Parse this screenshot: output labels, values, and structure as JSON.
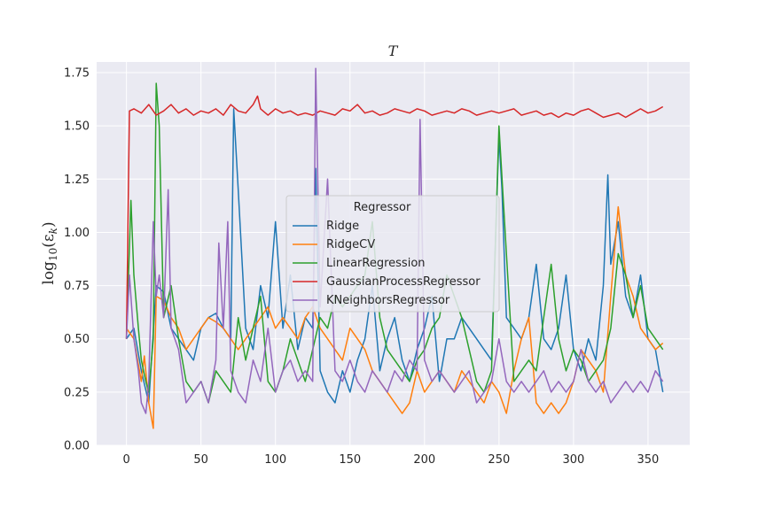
{
  "chart_data": {
    "type": "line",
    "title": "T",
    "ylabel": "log10(ε_k)",
    "xlabel": "",
    "xlim": [
      -20,
      378
    ],
    "ylim": [
      0.0,
      1.8
    ],
    "xticks": [
      0,
      50,
      100,
      150,
      200,
      250,
      300,
      350
    ],
    "yticks": [
      "0.00",
      "0.25",
      "0.50",
      "0.75",
      "1.00",
      "1.25",
      "1.50",
      "1.75"
    ],
    "grid": true,
    "legend": {
      "title": "Regressor",
      "placement": "center"
    },
    "series": [
      {
        "name": "Ridge",
        "color": "#1f77b4",
        "x": [
          0,
          5,
          10,
          15,
          20,
          25,
          30,
          35,
          40,
          45,
          50,
          55,
          60,
          65,
          70,
          72,
          75,
          80,
          85,
          90,
          95,
          100,
          105,
          110,
          115,
          120,
          125,
          127,
          130,
          135,
          140,
          145,
          150,
          155,
          160,
          165,
          170,
          175,
          180,
          185,
          190,
          195,
          200,
          205,
          210,
          215,
          220,
          225,
          230,
          235,
          240,
          245,
          250,
          252,
          255,
          260,
          265,
          270,
          275,
          280,
          285,
          290,
          295,
          300,
          305,
          310,
          315,
          320,
          323,
          325,
          330,
          335,
          340,
          345,
          350,
          355,
          360
        ],
        "y": [
          0.5,
          0.55,
          0.35,
          0.2,
          0.75,
          0.72,
          0.55,
          0.5,
          0.45,
          0.4,
          0.55,
          0.6,
          0.62,
          0.55,
          0.5,
          1.58,
          1.2,
          0.55,
          0.45,
          0.75,
          0.6,
          1.05,
          0.55,
          0.8,
          0.45,
          0.6,
          0.55,
          1.3,
          0.35,
          0.25,
          0.2,
          0.35,
          0.25,
          0.4,
          0.5,
          0.75,
          0.35,
          0.5,
          0.6,
          0.4,
          0.3,
          0.45,
          0.55,
          0.7,
          0.3,
          0.5,
          0.5,
          0.6,
          0.55,
          0.5,
          0.45,
          0.4,
          1.45,
          1.2,
          0.6,
          0.55,
          0.5,
          0.6,
          0.85,
          0.5,
          0.45,
          0.55,
          0.8,
          0.45,
          0.35,
          0.5,
          0.4,
          0.75,
          1.27,
          0.85,
          1.05,
          0.7,
          0.6,
          0.8,
          0.5,
          0.45,
          0.25
        ]
      },
      {
        "name": "RidgeCV",
        "color": "#ff7f0e",
        "x": [
          0,
          5,
          10,
          12,
          15,
          18,
          20,
          25,
          30,
          35,
          40,
          45,
          50,
          55,
          60,
          65,
          70,
          75,
          80,
          85,
          90,
          95,
          100,
          105,
          110,
          115,
          120,
          125,
          130,
          135,
          140,
          145,
          150,
          155,
          160,
          165,
          170,
          175,
          180,
          185,
          190,
          195,
          200,
          205,
          210,
          215,
          220,
          225,
          230,
          235,
          240,
          245,
          250,
          255,
          260,
          265,
          270,
          275,
          280,
          285,
          290,
          295,
          300,
          305,
          310,
          315,
          320,
          325,
          330,
          335,
          340,
          345,
          350,
          355,
          360
        ],
        "y": [
          0.55,
          0.5,
          0.3,
          0.42,
          0.2,
          0.08,
          0.7,
          0.68,
          0.6,
          0.55,
          0.45,
          0.5,
          0.55,
          0.6,
          0.58,
          0.55,
          0.5,
          0.45,
          0.5,
          0.55,
          0.6,
          0.65,
          0.55,
          0.6,
          0.55,
          0.5,
          0.6,
          0.65,
          0.55,
          0.5,
          0.45,
          0.4,
          0.55,
          0.5,
          0.45,
          0.35,
          0.3,
          0.25,
          0.2,
          0.15,
          0.2,
          0.35,
          0.25,
          0.3,
          0.35,
          0.3,
          0.25,
          0.35,
          0.3,
          0.25,
          0.2,
          0.3,
          0.25,
          0.15,
          0.35,
          0.5,
          0.6,
          0.2,
          0.15,
          0.2,
          0.15,
          0.2,
          0.3,
          0.45,
          0.4,
          0.35,
          0.25,
          0.7,
          1.12,
          0.8,
          0.7,
          0.55,
          0.5,
          0.45,
          0.48
        ]
      },
      {
        "name": "LinearRegression",
        "color": "#2ca02c",
        "x": [
          0,
          3,
          5,
          8,
          10,
          13,
          15,
          18,
          20,
          22,
          25,
          30,
          35,
          40,
          45,
          50,
          55,
          60,
          65,
          70,
          75,
          80,
          85,
          90,
          95,
          100,
          105,
          110,
          115,
          120,
          125,
          130,
          135,
          140,
          145,
          150,
          155,
          160,
          165,
          170,
          175,
          180,
          185,
          190,
          195,
          200,
          205,
          210,
          215,
          220,
          225,
          230,
          235,
          240,
          245,
          250,
          255,
          260,
          265,
          270,
          275,
          280,
          285,
          290,
          295,
          300,
          305,
          310,
          315,
          320,
          325,
          330,
          335,
          340,
          345,
          350,
          355,
          360
        ],
        "y": [
          0.5,
          1.15,
          0.8,
          0.55,
          0.4,
          0.3,
          0.25,
          0.5,
          1.7,
          1.5,
          0.6,
          0.75,
          0.5,
          0.3,
          0.25,
          0.3,
          0.2,
          0.35,
          0.3,
          0.25,
          0.6,
          0.4,
          0.55,
          0.7,
          0.3,
          0.25,
          0.35,
          0.5,
          0.4,
          0.3,
          0.45,
          0.6,
          0.55,
          0.7,
          0.65,
          0.7,
          0.75,
          0.8,
          1.05,
          0.6,
          0.45,
          0.4,
          0.35,
          0.3,
          0.4,
          0.45,
          0.55,
          0.6,
          0.8,
          0.7,
          0.6,
          0.45,
          0.3,
          0.25,
          0.35,
          1.5,
          0.9,
          0.3,
          0.35,
          0.4,
          0.35,
          0.6,
          0.85,
          0.5,
          0.35,
          0.45,
          0.4,
          0.3,
          0.35,
          0.4,
          0.55,
          0.9,
          0.8,
          0.6,
          0.75,
          0.55,
          0.5,
          0.45
        ]
      },
      {
        "name": "GaussianProcessRegressor",
        "color": "#d62728",
        "x": [
          0,
          2,
          5,
          10,
          15,
          20,
          25,
          30,
          35,
          40,
          45,
          50,
          55,
          60,
          65,
          70,
          75,
          80,
          85,
          88,
          90,
          95,
          100,
          105,
          110,
          115,
          120,
          125,
          130,
          135,
          140,
          145,
          150,
          155,
          160,
          165,
          170,
          175,
          180,
          185,
          190,
          195,
          200,
          205,
          210,
          215,
          220,
          225,
          230,
          235,
          240,
          245,
          250,
          255,
          260,
          265,
          270,
          275,
          280,
          285,
          290,
          295,
          300,
          305,
          310,
          315,
          320,
          325,
          330,
          335,
          340,
          345,
          350,
          355,
          360
        ],
        "y": [
          0.5,
          1.57,
          1.58,
          1.56,
          1.6,
          1.55,
          1.57,
          1.6,
          1.56,
          1.58,
          1.55,
          1.57,
          1.56,
          1.58,
          1.55,
          1.6,
          1.57,
          1.56,
          1.6,
          1.64,
          1.58,
          1.55,
          1.58,
          1.56,
          1.57,
          1.55,
          1.56,
          1.55,
          1.57,
          1.56,
          1.55,
          1.58,
          1.57,
          1.6,
          1.56,
          1.57,
          1.55,
          1.56,
          1.58,
          1.57,
          1.56,
          1.58,
          1.57,
          1.55,
          1.56,
          1.57,
          1.56,
          1.58,
          1.57,
          1.55,
          1.56,
          1.57,
          1.56,
          1.57,
          1.58,
          1.55,
          1.56,
          1.57,
          1.55,
          1.56,
          1.54,
          1.56,
          1.55,
          1.57,
          1.58,
          1.56,
          1.54,
          1.55,
          1.56,
          1.54,
          1.56,
          1.58,
          1.56,
          1.57,
          1.59
        ]
      },
      {
        "name": "KNeighborsRegressor",
        "color": "#9467bd",
        "x": [
          0,
          2,
          5,
          8,
          10,
          13,
          15,
          18,
          20,
          22,
          25,
          28,
          30,
          35,
          40,
          45,
          50,
          55,
          60,
          62,
          65,
          68,
          70,
          75,
          80,
          85,
          90,
          95,
          100,
          105,
          110,
          115,
          120,
          125,
          127,
          130,
          135,
          140,
          145,
          150,
          155,
          160,
          165,
          170,
          175,
          180,
          185,
          190,
          195,
          197,
          200,
          205,
          210,
          215,
          220,
          225,
          230,
          235,
          240,
          245,
          250,
          255,
          260,
          265,
          270,
          275,
          280,
          285,
          290,
          295,
          300,
          305,
          310,
          315,
          320,
          325,
          330,
          335,
          340,
          345,
          350,
          355,
          360
        ],
        "y": [
          0.5,
          0.8,
          0.5,
          0.35,
          0.2,
          0.15,
          0.3,
          1.05,
          0.7,
          0.8,
          0.6,
          1.2,
          0.55,
          0.45,
          0.2,
          0.25,
          0.3,
          0.2,
          0.4,
          0.95,
          0.55,
          1.05,
          0.35,
          0.25,
          0.2,
          0.4,
          0.3,
          0.55,
          0.25,
          0.35,
          0.4,
          0.3,
          0.35,
          0.3,
          1.77,
          0.65,
          1.25,
          0.35,
          0.3,
          0.4,
          0.3,
          0.25,
          0.35,
          0.3,
          0.25,
          0.35,
          0.3,
          0.4,
          0.35,
          1.53,
          0.4,
          0.3,
          0.35,
          0.3,
          0.25,
          0.3,
          0.35,
          0.2,
          0.25,
          0.3,
          0.5,
          0.3,
          0.25,
          0.3,
          0.25,
          0.3,
          0.35,
          0.25,
          0.3,
          0.25,
          0.3,
          0.45,
          0.3,
          0.25,
          0.3,
          0.2,
          0.25,
          0.3,
          0.25,
          0.3,
          0.25,
          0.35,
          0.3
        ]
      }
    ]
  }
}
